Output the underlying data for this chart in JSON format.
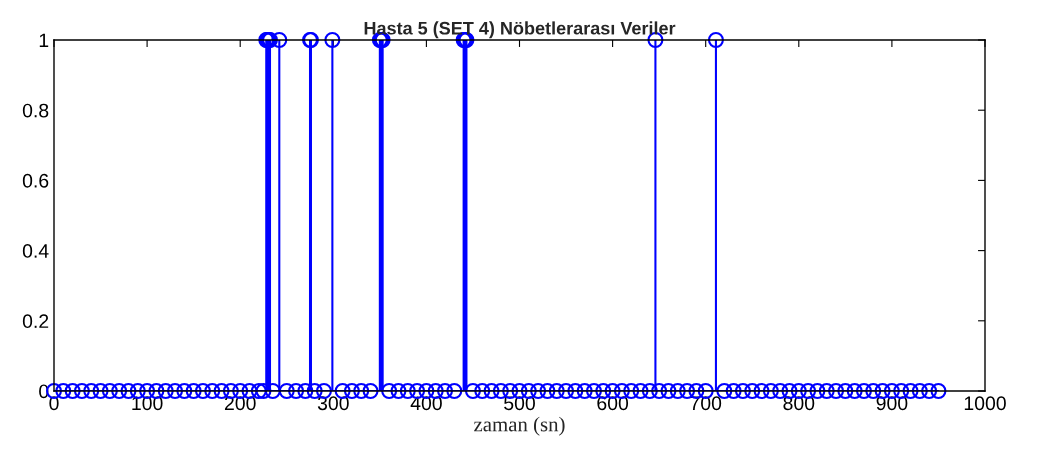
{
  "chart_data": {
    "type": "lollipop",
    "title": "Hasta 5 (SET 4) Nöbetlerarası Veriler",
    "xlabel": "zaman (sn)",
    "series": [
      {
        "color": "#0000ff",
        "x": [
          0,
          10,
          20,
          30,
          40,
          50,
          60,
          70,
          80,
          90,
          100,
          110,
          120,
          130,
          140,
          150,
          160,
          170,
          180,
          190,
          200,
          210,
          220,
          225,
          228,
          229,
          230,
          231,
          232,
          235,
          242,
          250,
          260,
          270,
          275,
          276,
          280,
          290,
          299,
          310,
          320,
          330,
          340,
          350,
          351,
          352,
          353,
          360,
          370,
          380,
          390,
          400,
          410,
          420,
          430,
          440,
          441,
          442,
          443,
          450,
          460,
          470,
          480,
          490,
          500,
          510,
          520,
          530,
          540,
          550,
          560,
          570,
          580,
          590,
          600,
          610,
          620,
          630,
          640,
          646,
          650,
          660,
          670,
          680,
          690,
          700,
          711,
          720,
          730,
          740,
          750,
          760,
          770,
          780,
          790,
          800,
          810,
          820,
          830,
          840,
          850,
          860,
          870,
          880,
          890,
          900,
          910,
          920,
          930,
          940,
          950
        ],
        "values": [
          0,
          0,
          0,
          0,
          0,
          0,
          0,
          0,
          0,
          0,
          0,
          0,
          0,
          0,
          0,
          0,
          0,
          0,
          0,
          0,
          0,
          0,
          0,
          0,
          1,
          1,
          1,
          1,
          1,
          0,
          1,
          0,
          0,
          0,
          1,
          1,
          0,
          0,
          1,
          0,
          0,
          0,
          0,
          1,
          1,
          1,
          1,
          0,
          0,
          0,
          0,
          0,
          0,
          0,
          0,
          1,
          1,
          1,
          1,
          0,
          0,
          0,
          0,
          0,
          0,
          0,
          0,
          0,
          0,
          0,
          0,
          0,
          0,
          0,
          0,
          0,
          0,
          0,
          0,
          1,
          0,
          0,
          0,
          0,
          0,
          0,
          1,
          0,
          0,
          0,
          0,
          0,
          0,
          0,
          0,
          0,
          0,
          0,
          0,
          0,
          0,
          0,
          0,
          0,
          0,
          0,
          0,
          0,
          0,
          0,
          0
        ]
      }
    ],
    "xlim": [
      0,
      1000
    ],
    "xticks": [
      0,
      100,
      200,
      300,
      400,
      500,
      600,
      700,
      800,
      900,
      1000
    ],
    "ylim": [
      0,
      1
    ],
    "yticks": [
      0,
      0.2,
      0.4,
      0.6,
      0.8,
      1
    ],
    "marker": "circle",
    "grid": false
  }
}
